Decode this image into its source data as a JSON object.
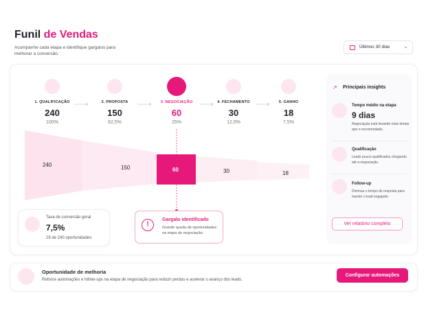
{
  "header": {
    "title_start": "Funil",
    "title_accent": "de Vendas",
    "subtitle": "Acompanhe cada etapa e identifique gargalos para melhorar a conversão.",
    "date_filter": "Últimos 30 dias"
  },
  "stages": [
    {
      "label": "1. QUALIFICAÇÃO",
      "value": "240",
      "percent": "100%"
    },
    {
      "label": "2. PROPOSTA",
      "value": "150",
      "percent": "62,5%"
    },
    {
      "label": "3. NEGOCIAÇÃO",
      "value": "60",
      "percent": "25%"
    },
    {
      "label": "4. FECHAMENTO",
      "value": "30",
      "percent": "12,5%"
    },
    {
      "label": "5. GANHO",
      "value": "18",
      "percent": "7,5%"
    }
  ],
  "conversion": {
    "label": "Taxa de conversão geral",
    "value": "7,5%",
    "note": "18 de 240 oportunidades"
  },
  "bottleneck": {
    "title": "Gargalo identificado",
    "text": "Grande queda de oportunidades na etapa de negociação."
  },
  "insights": {
    "title": "Principais insights",
    "items": [
      {
        "title": "Tempo médio na etapa",
        "value": "9 dias",
        "text": "Negociação está levando mais tempo que o recomendado."
      },
      {
        "title": "Qualificação",
        "text": "Leads pouco qualificados chegando até a negociação."
      },
      {
        "title": "Follow-up",
        "text": "Diminua o tempo de resposta para manter o lead engajado."
      }
    ],
    "button": "Ver relatório completo"
  },
  "footer": {
    "title": "Oportunidade de melhoria",
    "text": "Reforce automações e follow-ups na etapa de negociação para reduzir perdas e acelerar o avanço dos leads.",
    "button": "Configurar automações"
  }
}
